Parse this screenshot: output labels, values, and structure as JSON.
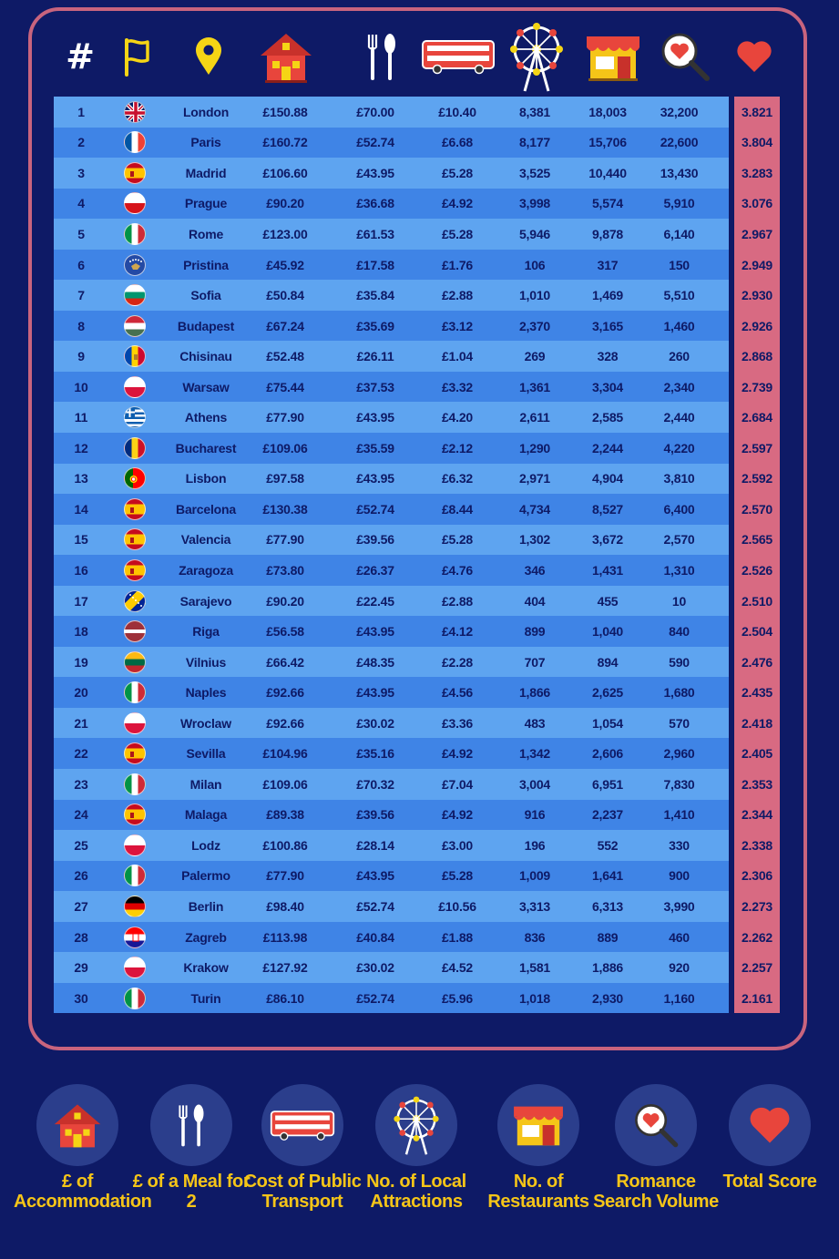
{
  "header": {
    "rank_symbol": "#",
    "icons": [
      "flag-icon",
      "location-pin-icon",
      "house-icon",
      "cutlery-icon",
      "bus-icon",
      "ferris-wheel-icon",
      "restaurant-shop-icon",
      "heart-search-icon",
      "heart-icon"
    ]
  },
  "colors": {
    "background": "#0e1a66",
    "frame_border": "#c8647e",
    "row_light": "#5ea4f0",
    "row_dark": "#3f84e6",
    "score_cell": "#d86a82",
    "legend_text": "#f5c518"
  },
  "rows": [
    {
      "rank": "1",
      "flag": "uk",
      "city": "London",
      "accommodation": "£150.88",
      "meal": "£70.00",
      "transport": "£10.40",
      "attractions": "8,381",
      "restaurants": "18,003",
      "search": "32,200",
      "score": "3.821"
    },
    {
      "rank": "2",
      "flag": "fr",
      "city": "Paris",
      "accommodation": "£160.72",
      "meal": "£52.74",
      "transport": "£6.68",
      "attractions": "8,177",
      "restaurants": "15,706",
      "search": "22,600",
      "score": "3.804"
    },
    {
      "rank": "3",
      "flag": "es",
      "city": "Madrid",
      "accommodation": "£106.60",
      "meal": "£43.95",
      "transport": "£5.28",
      "attractions": "3,525",
      "restaurants": "10,440",
      "search": "13,430",
      "score": "3.283"
    },
    {
      "rank": "4",
      "flag": "cz",
      "city": "Prague",
      "accommodation": "£90.20",
      "meal": "£36.68",
      "transport": "£4.92",
      "attractions": "3,998",
      "restaurants": "5,574",
      "search": "5,910",
      "score": "3.076"
    },
    {
      "rank": "5",
      "flag": "it",
      "city": "Rome",
      "accommodation": "£123.00",
      "meal": "£61.53",
      "transport": "£5.28",
      "attractions": "5,946",
      "restaurants": "9,878",
      "search": "6,140",
      "score": "2.967"
    },
    {
      "rank": "6",
      "flag": "xk",
      "city": "Pristina",
      "accommodation": "£45.92",
      "meal": "£17.58",
      "transport": "£1.76",
      "attractions": "106",
      "restaurants": "317",
      "search": "150",
      "score": "2.949"
    },
    {
      "rank": "7",
      "flag": "bg",
      "city": "Sofia",
      "accommodation": "£50.84",
      "meal": "£35.84",
      "transport": "£2.88",
      "attractions": "1,010",
      "restaurants": "1,469",
      "search": "5,510",
      "score": "2.930"
    },
    {
      "rank": "8",
      "flag": "hu",
      "city": "Budapest",
      "accommodation": "£67.24",
      "meal": "£35.69",
      "transport": "£3.12",
      "attractions": "2,370",
      "restaurants": "3,165",
      "search": "1,460",
      "score": "2.926"
    },
    {
      "rank": "9",
      "flag": "md",
      "city": "Chisinau",
      "accommodation": "£52.48",
      "meal": "£26.11",
      "transport": "£1.04",
      "attractions": "269",
      "restaurants": "328",
      "search": "260",
      "score": "2.868"
    },
    {
      "rank": "10",
      "flag": "pl",
      "city": "Warsaw",
      "accommodation": "£75.44",
      "meal": "£37.53",
      "transport": "£3.32",
      "attractions": "1,361",
      "restaurants": "3,304",
      "search": "2,340",
      "score": "2.739"
    },
    {
      "rank": "11",
      "flag": "gr",
      "city": "Athens",
      "accommodation": "£77.90",
      "meal": "£43.95",
      "transport": "£4.20",
      "attractions": "2,611",
      "restaurants": "2,585",
      "search": "2,440",
      "score": "2.684"
    },
    {
      "rank": "12",
      "flag": "ro",
      "city": "Bucharest",
      "accommodation": "£109.06",
      "meal": "£35.59",
      "transport": "£2.12",
      "attractions": "1,290",
      "restaurants": "2,244",
      "search": "4,220",
      "score": "2.597"
    },
    {
      "rank": "13",
      "flag": "pt",
      "city": "Lisbon",
      "accommodation": "£97.58",
      "meal": "£43.95",
      "transport": "£6.32",
      "attractions": "2,971",
      "restaurants": "4,904",
      "search": "3,810",
      "score": "2.592"
    },
    {
      "rank": "14",
      "flag": "es",
      "city": "Barcelona",
      "accommodation": "£130.38",
      "meal": "£52.74",
      "transport": "£8.44",
      "attractions": "4,734",
      "restaurants": "8,527",
      "search": "6,400",
      "score": "2.570"
    },
    {
      "rank": "15",
      "flag": "es",
      "city": "Valencia",
      "accommodation": "£77.90",
      "meal": "£39.56",
      "transport": "£5.28",
      "attractions": "1,302",
      "restaurants": "3,672",
      "search": "2,570",
      "score": "2.565"
    },
    {
      "rank": "16",
      "flag": "es",
      "city": "Zaragoza",
      "accommodation": "£73.80",
      "meal": "£26.37",
      "transport": "£4.76",
      "attractions": "346",
      "restaurants": "1,431",
      "search": "1,310",
      "score": "2.526"
    },
    {
      "rank": "17",
      "flag": "ba",
      "city": "Sarajevo",
      "accommodation": "£90.20",
      "meal": "£22.45",
      "transport": "£2.88",
      "attractions": "404",
      "restaurants": "455",
      "search": "10",
      "score": "2.510"
    },
    {
      "rank": "18",
      "flag": "lv",
      "city": "Riga",
      "accommodation": "£56.58",
      "meal": "£43.95",
      "transport": "£4.12",
      "attractions": "899",
      "restaurants": "1,040",
      "search": "840",
      "score": "2.504"
    },
    {
      "rank": "19",
      "flag": "lt",
      "city": "Vilnius",
      "accommodation": "£66.42",
      "meal": "£48.35",
      "transport": "£2.28",
      "attractions": "707",
      "restaurants": "894",
      "search": "590",
      "score": "2.476"
    },
    {
      "rank": "20",
      "flag": "it",
      "city": "Naples",
      "accommodation": "£92.66",
      "meal": "£43.95",
      "transport": "£4.56",
      "attractions": "1,866",
      "restaurants": "2,625",
      "search": "1,680",
      "score": "2.435"
    },
    {
      "rank": "21",
      "flag": "pl",
      "city": "Wroclaw",
      "accommodation": "£92.66",
      "meal": "£30.02",
      "transport": "£3.36",
      "attractions": "483",
      "restaurants": "1,054",
      "search": "570",
      "score": "2.418"
    },
    {
      "rank": "22",
      "flag": "es",
      "city": "Sevilla",
      "accommodation": "£104.96",
      "meal": "£35.16",
      "transport": "£4.92",
      "attractions": "1,342",
      "restaurants": "2,606",
      "search": "2,960",
      "score": "2.405"
    },
    {
      "rank": "23",
      "flag": "it",
      "city": "Milan",
      "accommodation": "£109.06",
      "meal": "£70.32",
      "transport": "£7.04",
      "attractions": "3,004",
      "restaurants": "6,951",
      "search": "7,830",
      "score": "2.353"
    },
    {
      "rank": "24",
      "flag": "es",
      "city": "Malaga",
      "accommodation": "£89.38",
      "meal": "£39.56",
      "transport": "£4.92",
      "attractions": "916",
      "restaurants": "2,237",
      "search": "1,410",
      "score": "2.344"
    },
    {
      "rank": "25",
      "flag": "pl",
      "city": "Lodz",
      "accommodation": "£100.86",
      "meal": "£28.14",
      "transport": "£3.00",
      "attractions": "196",
      "restaurants": "552",
      "search": "330",
      "score": "2.338"
    },
    {
      "rank": "26",
      "flag": "it",
      "city": "Palermo",
      "accommodation": "£77.90",
      "meal": "£43.95",
      "transport": "£5.28",
      "attractions": "1,009",
      "restaurants": "1,641",
      "search": "900",
      "score": "2.306"
    },
    {
      "rank": "27",
      "flag": "de",
      "city": "Berlin",
      "accommodation": "£98.40",
      "meal": "£52.74",
      "transport": "£10.56",
      "attractions": "3,313",
      "restaurants": "6,313",
      "search": "3,990",
      "score": "2.273"
    },
    {
      "rank": "28",
      "flag": "hr",
      "city": "Zagreb",
      "accommodation": "£113.98",
      "meal": "£40.84",
      "transport": "£1.88",
      "attractions": "836",
      "restaurants": "889",
      "search": "460",
      "score": "2.262"
    },
    {
      "rank": "29",
      "flag": "pl",
      "city": "Krakow",
      "accommodation": "£127.92",
      "meal": "£30.02",
      "transport": "£4.52",
      "attractions": "1,581",
      "restaurants": "1,886",
      "search": "920",
      "score": "2.257"
    },
    {
      "rank": "30",
      "flag": "it",
      "city": "Turin",
      "accommodation": "£86.10",
      "meal": "£52.74",
      "transport": "£5.96",
      "attractions": "1,018",
      "restaurants": "2,930",
      "search": "1,160",
      "score": "2.161"
    }
  ],
  "legend": [
    {
      "icon": "house-icon",
      "label": "£ of Accommodation"
    },
    {
      "icon": "cutlery-icon",
      "label": "£ of a Meal for 2"
    },
    {
      "icon": "bus-icon",
      "label": "Cost of Public Transport"
    },
    {
      "icon": "ferris-wheel-icon",
      "label": "No. of Local Attractions"
    },
    {
      "icon": "restaurant-shop-icon",
      "label": "No. of Restaurants"
    },
    {
      "icon": "heart-search-icon",
      "label": "Romance Search Volume"
    },
    {
      "icon": "heart-icon",
      "label": "Total Score"
    }
  ]
}
